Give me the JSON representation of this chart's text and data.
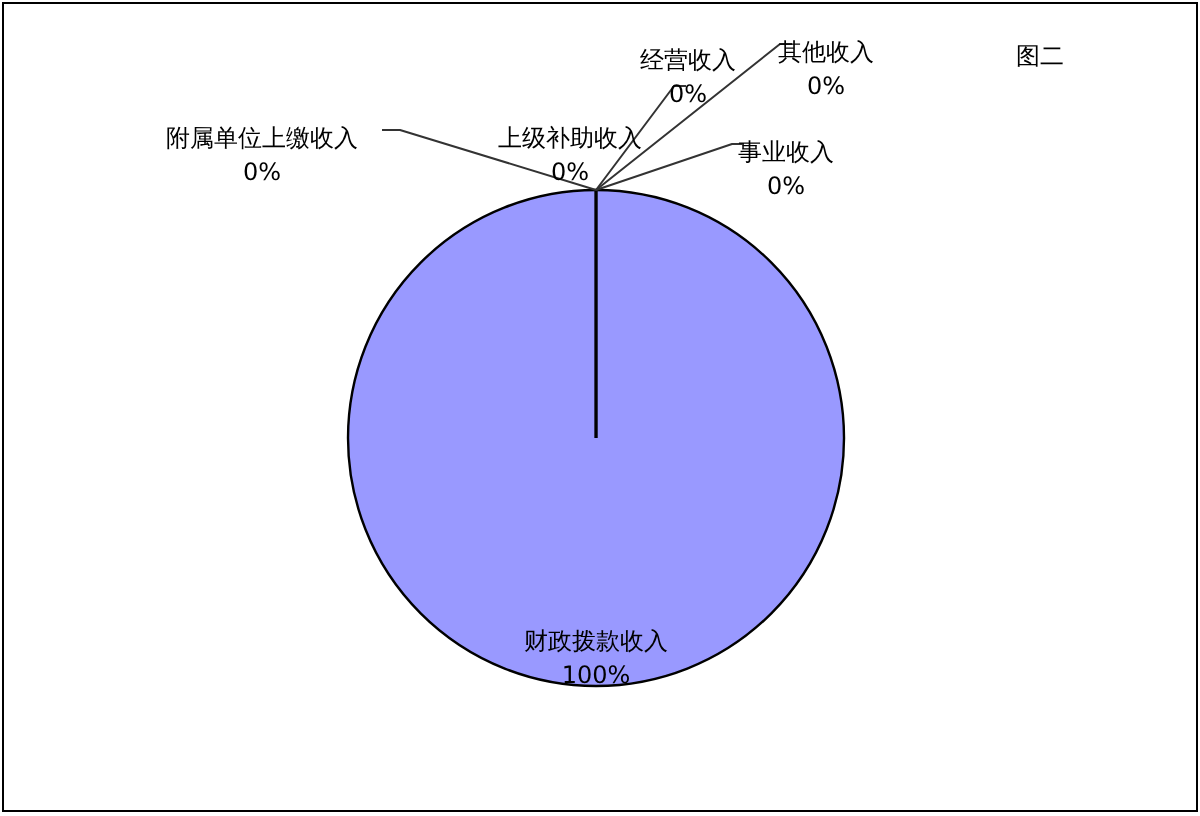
{
  "chart_data": {
    "type": "pie",
    "title": "图二",
    "categories": [
      "财政拨款收入",
      "上级补助收入",
      "事业收入",
      "经营收入",
      "附属单位上缴收入",
      "其他收入"
    ],
    "values": [
      100,
      0,
      0,
      0,
      0,
      0
    ],
    "colors": [
      "#9999ff",
      "#993366",
      "#ffffcc",
      "#ccffff",
      "#660066",
      "#ff8080"
    ],
    "value_labels": [
      "100%",
      "0%",
      "0%",
      "0%",
      "0%",
      "0%"
    ]
  }
}
